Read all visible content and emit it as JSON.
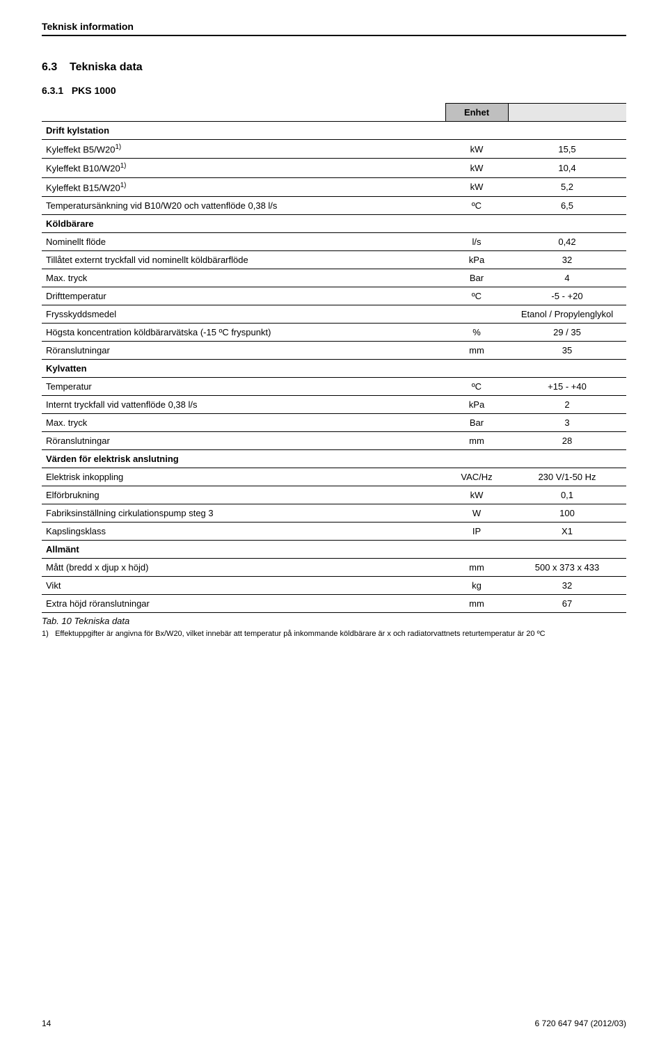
{
  "header": {
    "title": "Teknisk information"
  },
  "section": {
    "num": "6.3",
    "title": "Tekniska data"
  },
  "subsection": {
    "num": "6.3.1",
    "title": "PKS 1000"
  },
  "table": {
    "unit_header": "Enhet",
    "caption": "Tab. 10  Tekniska data",
    "groups": [
      {
        "type": "group",
        "label": "Drift kylstation"
      },
      {
        "type": "row",
        "label": "Kyleffekt B5/W20",
        "sup": "1)",
        "unit": "kW",
        "value": "15,5"
      },
      {
        "type": "row",
        "label": "Kyleffekt B10/W20",
        "sup": "1)",
        "unit": "kW",
        "value": "10,4"
      },
      {
        "type": "row",
        "label": "Kyleffekt B15/W20",
        "sup": "1)",
        "unit": "kW",
        "value": "5,2"
      },
      {
        "type": "row",
        "label": "Temperatursänkning vid B10/W20 och vattenflöde 0,38 l/s",
        "unit": "ºC",
        "value": "6,5"
      },
      {
        "type": "group",
        "label": "Köldbärare"
      },
      {
        "type": "row",
        "label": "Nominellt flöde",
        "unit": "l/s",
        "value": "0,42"
      },
      {
        "type": "row",
        "label": "Tillåtet externt tryckfall vid nominellt köldbärarflöde",
        "unit": "kPa",
        "value": "32"
      },
      {
        "type": "row",
        "label": "Max. tryck",
        "unit": "Bar",
        "value": "4"
      },
      {
        "type": "row",
        "label": "Drifttemperatur",
        "unit": "ºC",
        "value": "-5 - +20"
      },
      {
        "type": "row",
        "label": "Frysskyddsmedel",
        "unit": "",
        "value": "Etanol / Propylenglykol"
      },
      {
        "type": "row",
        "label": "Högsta koncentration köldbärarvätska (-15  ºC fryspunkt)",
        "unit": "%",
        "value": "29 / 35"
      },
      {
        "type": "row",
        "label": "Röranslutningar",
        "unit": "mm",
        "value": "35"
      },
      {
        "type": "group",
        "label": "Kylvatten"
      },
      {
        "type": "row",
        "label": "Temperatur",
        "unit": "ºC",
        "value": "+15 - +40"
      },
      {
        "type": "row",
        "label": "Internt tryckfall vid vattenflöde 0,38 l/s",
        "unit": "kPa",
        "value": "2"
      },
      {
        "type": "row",
        "label": "Max. tryck",
        "unit": "Bar",
        "value": "3"
      },
      {
        "type": "row",
        "label": "Röranslutningar",
        "unit": "mm",
        "value": "28"
      },
      {
        "type": "group",
        "label": "Värden för elektrisk anslutning"
      },
      {
        "type": "row",
        "label": "Elektrisk inkoppling",
        "unit": "VAC/Hz",
        "value": "230 V/1-50 Hz"
      },
      {
        "type": "row",
        "label": "Elförbrukning",
        "unit": "kW",
        "value": "0,1"
      },
      {
        "type": "row",
        "label": "Fabriksinställning cirkulationspump steg 3",
        "unit": "W",
        "value": "100"
      },
      {
        "type": "row",
        "label": "Kapslingsklass",
        "unit": "IP",
        "value": "X1"
      },
      {
        "type": "group",
        "label": "Allmänt"
      },
      {
        "type": "row",
        "label": "Mått (bredd x djup x höjd)",
        "unit": "mm",
        "value": "500 x 373 x 433"
      },
      {
        "type": "row",
        "label": "Vikt",
        "unit": "kg",
        "value": "32"
      },
      {
        "type": "row",
        "label": "Extra höjd röranslutningar",
        "unit": "mm",
        "value": "67"
      }
    ]
  },
  "footnote": {
    "num": "1)",
    "text": "Effektuppgifter är angivna för Bx/W20, vilket innebär att temperatur på inkommande köldbärare är x och radiatorvattnets returtemperatur är 20 ºC"
  },
  "footer": {
    "page": "14",
    "docref": "6 720 647 947 (2012/03)"
  }
}
